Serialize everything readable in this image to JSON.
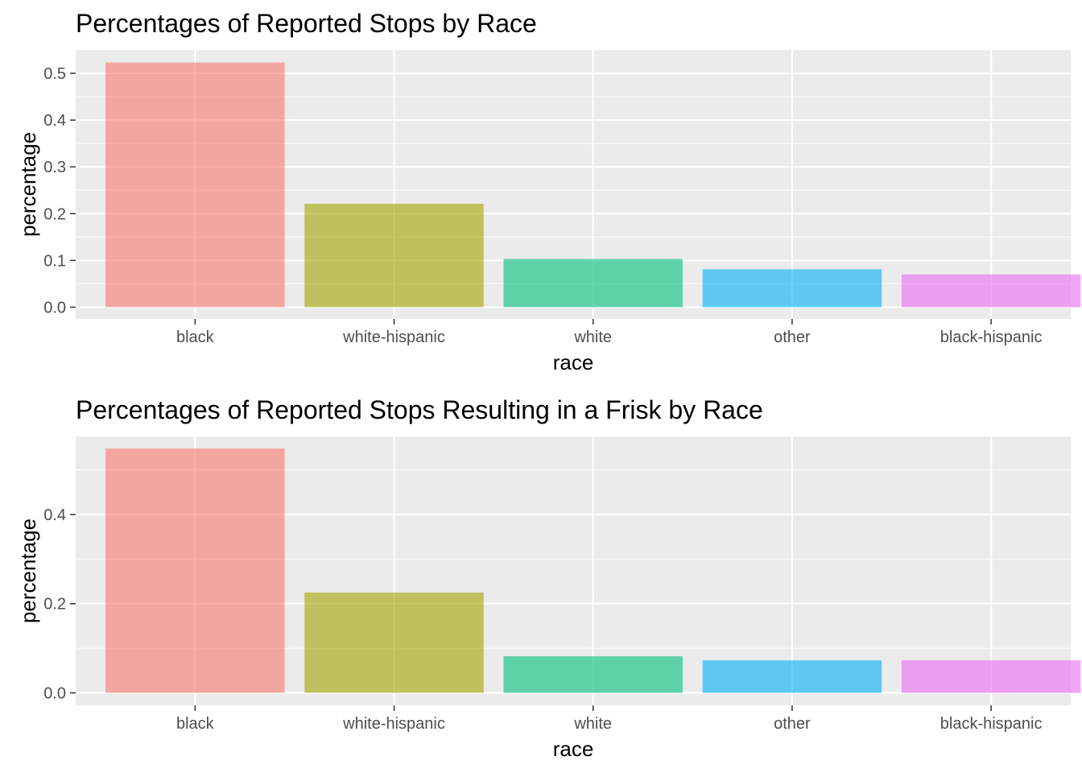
{
  "chart_data": [
    {
      "type": "bar",
      "title": "Percentages of Reported Stops by Race",
      "xlabel": "race",
      "ylabel": "percentage",
      "categories": [
        "black",
        "white-hispanic",
        "white",
        "other",
        "black-hispanic"
      ],
      "values": [
        0.523,
        0.221,
        0.103,
        0.081,
        0.07
      ],
      "ylim": [
        -0.025,
        0.55
      ],
      "yticks": [
        0.0,
        0.1,
        0.2,
        0.3,
        0.4,
        0.5
      ],
      "ytick_labels": [
        "0.0",
        "0.1",
        "0.2",
        "0.3",
        "0.4",
        "0.5"
      ],
      "grid": true,
      "legend": "none",
      "colors": [
        "#F8766D",
        "#A3A500",
        "#00BF7D",
        "#00B0F6",
        "#E76BF3"
      ]
    },
    {
      "type": "bar",
      "title": "Percentages of Reported Stops Resulting in a Frisk by Race",
      "xlabel": "race",
      "ylabel": "percentage",
      "categories": [
        "black",
        "white-hispanic",
        "white",
        "other",
        "black-hispanic"
      ],
      "values": [
        0.548,
        0.225,
        0.082,
        0.073,
        0.073
      ],
      "ylim": [
        -0.028,
        0.575
      ],
      "yticks": [
        0.0,
        0.2,
        0.4
      ],
      "ytick_labels": [
        "0.0",
        "0.2",
        "0.4"
      ],
      "grid": true,
      "legend": "none",
      "colors": [
        "#F8766D",
        "#A3A500",
        "#00BF7D",
        "#00B0F6",
        "#E76BF3"
      ]
    }
  ]
}
